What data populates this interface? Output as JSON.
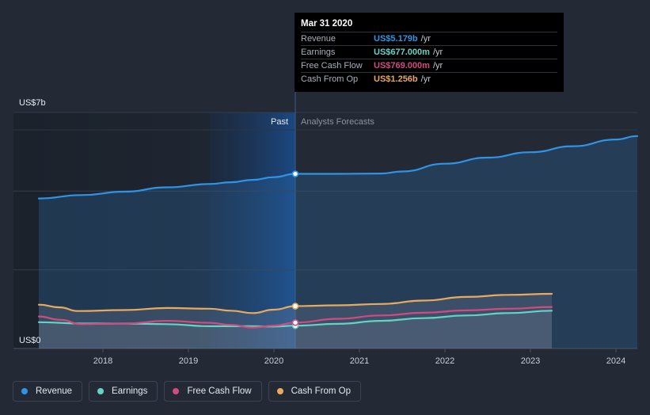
{
  "chart_data": {
    "type": "line",
    "y_axis": {
      "top_label": "US$7b",
      "bottom_label": "US$0",
      "ylim": [
        0,
        7
      ]
    },
    "x_axis": {
      "ticks": [
        "2018",
        "2019",
        "2020",
        "2021",
        "2022",
        "2023",
        "2024"
      ],
      "xlim": [
        2017.2,
        2024.25
      ]
    },
    "sections": {
      "past": "Past",
      "forecast": "Analysts Forecasts",
      "divider_x": 2020.25
    },
    "series": [
      {
        "key": "revenue",
        "name": "Revenue",
        "color": "#2f94e6",
        "points": [
          [
            2017.25,
            4.45
          ],
          [
            2017.75,
            4.55
          ],
          [
            2018.25,
            4.65
          ],
          [
            2018.75,
            4.78
          ],
          [
            2019.25,
            4.88
          ],
          [
            2019.5,
            4.93
          ],
          [
            2019.75,
            5.0
          ],
          [
            2020.0,
            5.08
          ],
          [
            2020.25,
            5.179
          ],
          [
            2020.75,
            5.18
          ],
          [
            2021.25,
            5.19
          ],
          [
            2021.5,
            5.25
          ],
          [
            2022.0,
            5.48
          ],
          [
            2022.5,
            5.66
          ],
          [
            2023.0,
            5.82
          ],
          [
            2023.5,
            6.0
          ],
          [
            2024.0,
            6.2
          ],
          [
            2024.25,
            6.3
          ]
        ]
      },
      {
        "key": "earnings",
        "name": "Earnings",
        "color": "#65d3c4",
        "points": [
          [
            2017.25,
            0.78
          ],
          [
            2017.75,
            0.74
          ],
          [
            2018.25,
            0.74
          ],
          [
            2018.75,
            0.72
          ],
          [
            2019.25,
            0.66
          ],
          [
            2019.75,
            0.66
          ],
          [
            2020.0,
            0.65
          ],
          [
            2020.25,
            0.677
          ],
          [
            2020.75,
            0.73
          ],
          [
            2021.25,
            0.82
          ],
          [
            2021.75,
            0.9
          ],
          [
            2022.25,
            0.98
          ],
          [
            2022.75,
            1.05
          ],
          [
            2023.25,
            1.12
          ]
        ]
      },
      {
        "key": "fcf",
        "name": "Free Cash Flow",
        "color": "#d04c80",
        "points": [
          [
            2017.25,
            0.95
          ],
          [
            2017.5,
            0.85
          ],
          [
            2017.75,
            0.72
          ],
          [
            2018.25,
            0.74
          ],
          [
            2018.75,
            0.82
          ],
          [
            2019.25,
            0.76
          ],
          [
            2019.5,
            0.7
          ],
          [
            2019.75,
            0.62
          ],
          [
            2020.0,
            0.68
          ],
          [
            2020.25,
            0.769
          ],
          [
            2020.75,
            0.88
          ],
          [
            2021.25,
            0.98
          ],
          [
            2021.75,
            1.06
          ],
          [
            2022.25,
            1.13
          ],
          [
            2022.75,
            1.18
          ],
          [
            2023.25,
            1.23
          ]
        ]
      },
      {
        "key": "cfo",
        "name": "Cash From Op",
        "color": "#e8aa5e",
        "points": [
          [
            2017.25,
            1.3
          ],
          [
            2017.5,
            1.22
          ],
          [
            2017.7,
            1.11
          ],
          [
            2018.25,
            1.14
          ],
          [
            2018.75,
            1.2
          ],
          [
            2019.25,
            1.18
          ],
          [
            2019.5,
            1.12
          ],
          [
            2019.75,
            1.05
          ],
          [
            2020.0,
            1.15
          ],
          [
            2020.25,
            1.256
          ],
          [
            2020.75,
            1.28
          ],
          [
            2021.25,
            1.32
          ],
          [
            2021.75,
            1.42
          ],
          [
            2022.25,
            1.53
          ],
          [
            2022.75,
            1.59
          ],
          [
            2023.25,
            1.62
          ]
        ]
      }
    ]
  },
  "tooltip": {
    "date": "Mar 31 2020",
    "rows": [
      {
        "name": "Revenue",
        "value": "US$5.179b",
        "unit": "/yr",
        "color": "#2f94e6"
      },
      {
        "name": "Earnings",
        "value": "US$677.000m",
        "unit": "/yr",
        "color": "#65d3c4"
      },
      {
        "name": "Free Cash Flow",
        "value": "US$769.000m",
        "unit": "/yr",
        "color": "#d04c80"
      },
      {
        "name": "Cash From Op",
        "value": "US$1.256b",
        "unit": "/yr",
        "color": "#e8aa5e"
      }
    ]
  },
  "legend": [
    {
      "label": "Revenue",
      "color": "#2f94e6"
    },
    {
      "label": "Earnings",
      "color": "#65d3c4"
    },
    {
      "label": "Free Cash Flow",
      "color": "#d04c80"
    },
    {
      "label": "Cash From Op",
      "color": "#e8aa5e"
    }
  ]
}
